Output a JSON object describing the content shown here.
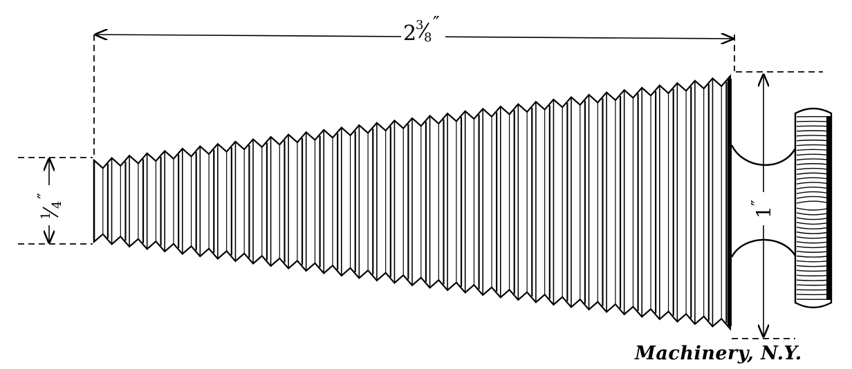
{
  "figure": {
    "length_dimension": {
      "whole": "2",
      "fraction_numerator": "3",
      "fraction_denominator": "8",
      "inch_mark": "″"
    },
    "small_end_dimension": {
      "fraction_numerator": "1",
      "fraction_denominator": "4",
      "inch_mark": "″"
    },
    "large_end_dimension": {
      "value": "1",
      "inch_mark": "″"
    },
    "credit": "Machinery, N.Y."
  },
  "colors": {
    "ink": "#000000",
    "paper": "#ffffff"
  }
}
